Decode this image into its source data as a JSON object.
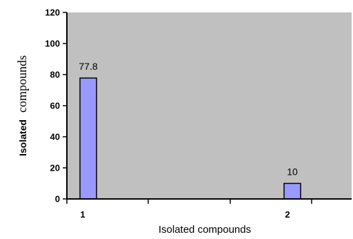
{
  "chart_data": {
    "type": "bar",
    "categories": [
      "1",
      "2"
    ],
    "values": [
      77.8,
      10
    ],
    "data_labels": [
      "77.8",
      "10"
    ],
    "xlabel": "Isolated compounds",
    "ylabel_part1": "Isolated",
    "ylabel_part2": "compounds",
    "ylim": [
      0,
      120
    ],
    "yticks": [
      "0",
      "20",
      "40",
      "60",
      "80",
      "100",
      "120"
    ],
    "grid": false,
    "colors": {
      "plot_background": "#c0c0c0",
      "bar_fill": "#9999ff"
    }
  }
}
